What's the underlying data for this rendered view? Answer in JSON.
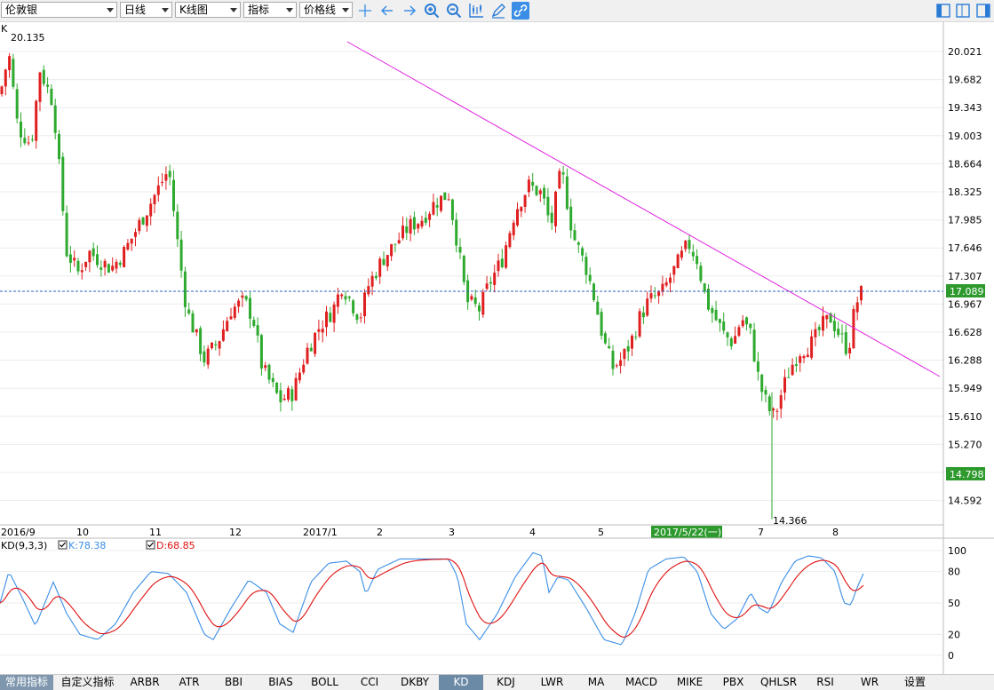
{
  "toolbar": {
    "symbol": "伦敦银",
    "period": "日线",
    "chart_type": "K线图",
    "indicator": "指标",
    "price_line": "价格线"
  },
  "main_chart": {
    "corner_label": "K",
    "high_label": "20.135",
    "low_label": "14.366",
    "current_price": "17.089",
    "crosshair_price": "14.798",
    "crosshair_date": "2017/5/22(一)",
    "y_ticks": [
      "20.021",
      "19.682",
      "19.343",
      "19.003",
      "18.664",
      "18.325",
      "17.985",
      "17.646",
      "17.307",
      "16.967",
      "16.628",
      "16.288",
      "15.949",
      "15.610",
      "15.270",
      "14.931",
      "14.592"
    ],
    "x_ticks": [
      "2016/9",
      "10",
      "11",
      "12",
      "2017/1",
      "2",
      "3",
      "4",
      "5",
      "6",
      "7",
      "8"
    ],
    "up_color": "#e02020",
    "down_color": "#2eaa2e",
    "trendline_color": "#e020e0"
  },
  "kd_panel": {
    "title": "KD(9,3,3)",
    "k_label": "K:78.38",
    "d_label": "D:68.85",
    "y_ticks": [
      "100",
      "80",
      "50",
      "20",
      "0"
    ],
    "k_color": "#3a8ee6",
    "d_color": "#e01010"
  },
  "tabs": [
    "常用指标",
    "自定义指标",
    "ARBR",
    "ATR",
    "BBI",
    "BIAS",
    "BOLL",
    "CCI",
    "DKBY",
    "KD",
    "KDJ",
    "LWR",
    "MA",
    "MACD",
    "MIKE",
    "PBX",
    "QHLSR",
    "RSI",
    "WR",
    "设置"
  ],
  "active_tab": "KD"
}
